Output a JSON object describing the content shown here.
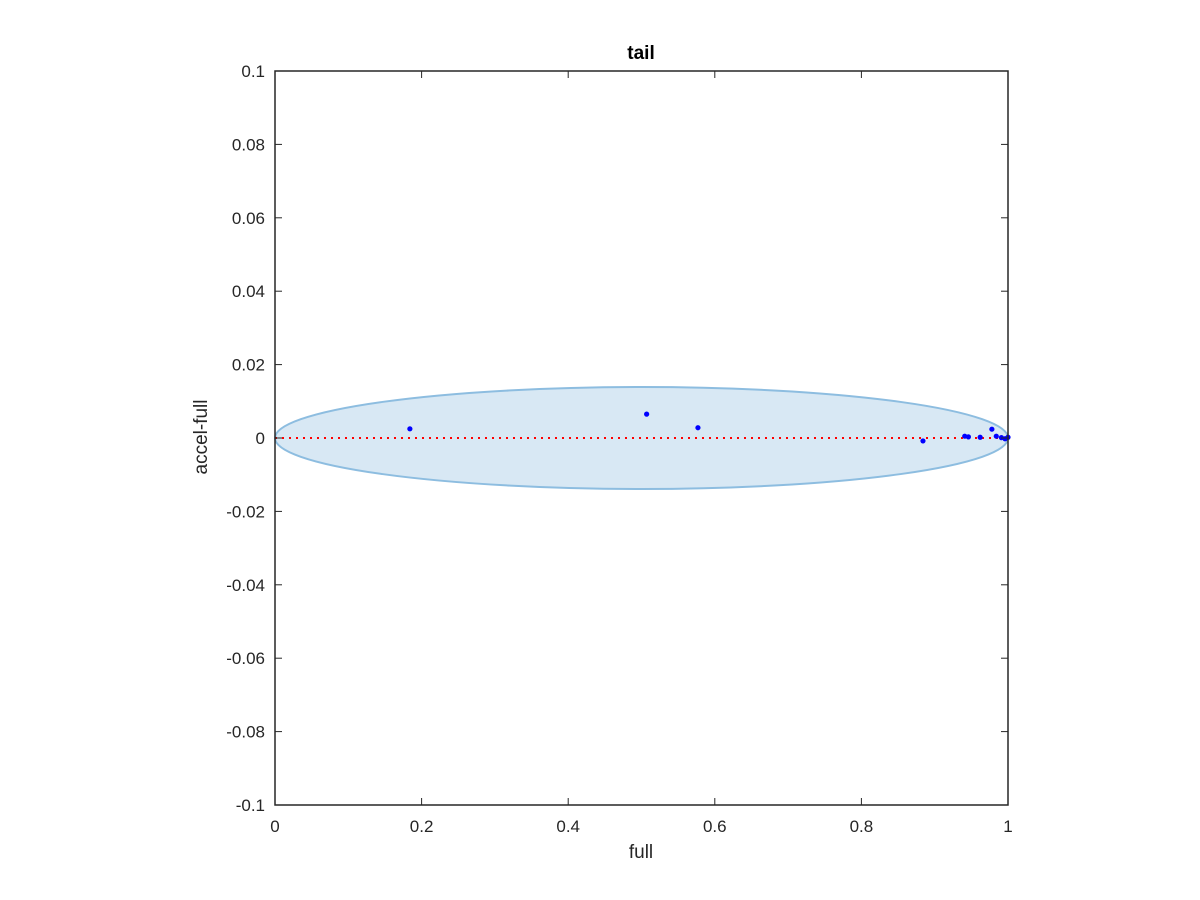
{
  "chart_data": {
    "type": "scatter",
    "title": "tail",
    "xlabel": "full",
    "ylabel": "accel-full",
    "xlim": [
      0,
      1
    ],
    "ylim": [
      -0.1,
      0.1
    ],
    "xticks": [
      0,
      0.2,
      0.4,
      0.6,
      0.8,
      1
    ],
    "xtick_labels": [
      "0",
      "0.2",
      "0.4",
      "0.6",
      "0.8",
      "1"
    ],
    "yticks": [
      -0.1,
      -0.08,
      -0.06,
      -0.04,
      -0.02,
      0,
      0.02,
      0.04,
      0.06,
      0.08,
      0.1
    ],
    "ytick_labels": [
      "-0.1",
      "-0.08",
      "-0.06",
      "-0.04",
      "-0.02",
      "0",
      "0.02",
      "0.04",
      "0.06",
      "0.08",
      "0.1"
    ],
    "grid": false,
    "points": [
      {
        "x": 0.184,
        "y": 0.0025
      },
      {
        "x": 0.507,
        "y": 0.0065
      },
      {
        "x": 0.577,
        "y": 0.0028
      },
      {
        "x": 0.884,
        "y": -0.0008
      },
      {
        "x": 0.941,
        "y": 0.0005
      },
      {
        "x": 0.946,
        "y": 0.0003
      },
      {
        "x": 0.962,
        "y": 0.0002
      },
      {
        "x": 0.978,
        "y": 0.0024
      },
      {
        "x": 0.984,
        "y": 0.0005
      },
      {
        "x": 0.991,
        "y": 0.0001
      },
      {
        "x": 0.996,
        "y": -0.0002
      },
      {
        "x": 1.0,
        "y": 0.0002
      }
    ],
    "reference_line": {
      "y": 0,
      "style": "dotted",
      "color": "#ff0000"
    },
    "ellipse": {
      "center_x": 0.5,
      "center_y": 0,
      "radius_x": 0.5,
      "radius_y": 0.0139,
      "fill": "#d8e8f4",
      "stroke": "#8dbde0"
    },
    "point_color": "#0000ff"
  }
}
